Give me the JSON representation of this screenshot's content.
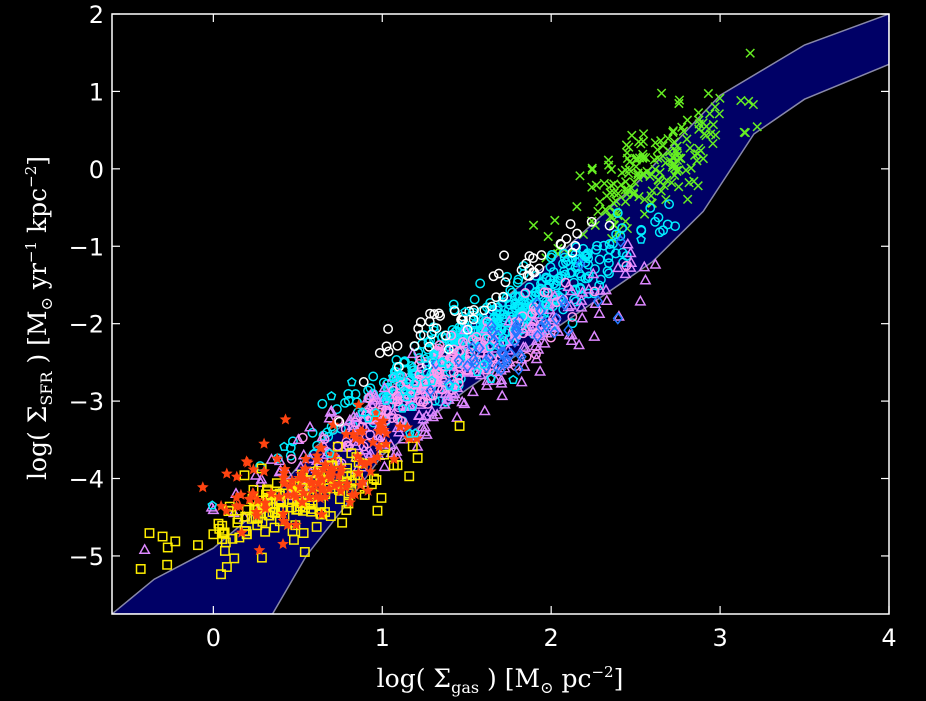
{
  "chart_data": {
    "type": "scatter",
    "title": "",
    "xlabel": {
      "pre": "log( Σ",
      "sub": "gas",
      "mid": " )  [M",
      "sub2": "⊙",
      "post": " pc",
      "sup": "−2",
      "end": "]"
    },
    "ylabel": {
      "pre": "log( Σ",
      "sub": "SFR",
      "mid": " )  [M",
      "sub2": "⊙",
      "post": " yr",
      "sup1": "−1",
      "post2": " kpc",
      "sup2": "−2",
      "end": "]"
    },
    "xlim": [
      -0.6,
      4.0
    ],
    "ylim": [
      -5.75,
      2.0
    ],
    "x_ticks": [
      0,
      1,
      2,
      3,
      4
    ],
    "x_tick_labels": [
      "0",
      "1",
      "2",
      "3",
      "4"
    ],
    "y_ticks": [
      -5,
      -4,
      -3,
      -2,
      -1,
      0,
      1,
      2
    ],
    "y_tick_labels": [
      "−5",
      "−4",
      "−3",
      "−2",
      "−1",
      "0",
      "1",
      "2"
    ],
    "grid": false,
    "legend": "none",
    "colors": {
      "background": "#000000",
      "axes": "#ffffff",
      "band_fill": "#000066",
      "band_edge": "#8888aa"
    },
    "band": {
      "upper": [
        [
          -0.6,
          -5.75
        ],
        [
          -0.35,
          -5.3
        ],
        [
          0.0,
          -4.9
        ],
        [
          0.3,
          -4.35
        ],
        [
          0.6,
          -3.6
        ],
        [
          1.0,
          -2.9
        ],
        [
          1.5,
          -2.05
        ],
        [
          2.0,
          -1.2
        ],
        [
          2.5,
          -0.2
        ],
        [
          3.0,
          0.95
        ],
        [
          3.5,
          1.6
        ],
        [
          4.0,
          2.0
        ]
      ],
      "lower": [
        [
          4.0,
          1.35
        ],
        [
          3.5,
          0.9
        ],
        [
          3.2,
          0.45
        ],
        [
          2.9,
          -0.55
        ],
        [
          2.6,
          -1.2
        ],
        [
          2.0,
          -2.1
        ],
        [
          1.5,
          -2.85
        ],
        [
          1.0,
          -3.7
        ],
        [
          0.8,
          -4.3
        ],
        [
          0.55,
          -5.0
        ],
        [
          0.35,
          -5.75
        ]
      ]
    },
    "series": [
      {
        "marker": "x",
        "color": "#66ee22",
        "cx": 2.6,
        "cy": 0.0,
        "sx": 0.25,
        "sy": 0.55,
        "n": 180,
        "slope": 1.45,
        "seed": 11
      },
      {
        "marker": "circle",
        "color": "#00eeff",
        "cx": 1.6,
        "cy": -2.1,
        "sx": 0.45,
        "sy": 0.35,
        "n": 420,
        "slope": 1.3,
        "seed": 23
      },
      {
        "marker": "triangle",
        "color": "#dd88ff",
        "cx": 1.3,
        "cy": -2.9,
        "sx": 0.55,
        "sy": 0.45,
        "n": 260,
        "slope": 1.25,
        "seed": 37
      },
      {
        "marker": "circle",
        "color": "#ff99ee",
        "cx": 1.4,
        "cy": -2.6,
        "sx": 0.4,
        "sy": 0.3,
        "n": 160,
        "slope": 1.3,
        "seed": 41
      },
      {
        "marker": "square",
        "color": "#ffee00",
        "cx": 0.5,
        "cy": -4.3,
        "sx": 0.35,
        "sy": 0.4,
        "n": 170,
        "slope": 0.8,
        "seed": 53
      },
      {
        "marker": "star",
        "color": "#ff4411",
        "cx": 0.6,
        "cy": -3.9,
        "sx": 0.3,
        "sy": 0.55,
        "n": 130,
        "slope": 0.9,
        "seed": 61
      },
      {
        "marker": "circle",
        "color": "#ffffff",
        "cx": 1.6,
        "cy": -1.7,
        "sx": 0.4,
        "sy": 0.3,
        "n": 60,
        "slope": 1.4,
        "seed": 71
      },
      {
        "marker": "diamond",
        "color": "#2277ff",
        "cx": 1.8,
        "cy": -2.2,
        "sx": 0.25,
        "sy": 0.35,
        "n": 50,
        "slope": 1.2,
        "seed": 83
      },
      {
        "marker": "pentagon",
        "color": "#00eeff",
        "cx": 1.0,
        "cy": -3.0,
        "sx": 0.5,
        "sy": 0.5,
        "n": 45,
        "slope": 1.1,
        "seed": 97
      }
    ]
  }
}
